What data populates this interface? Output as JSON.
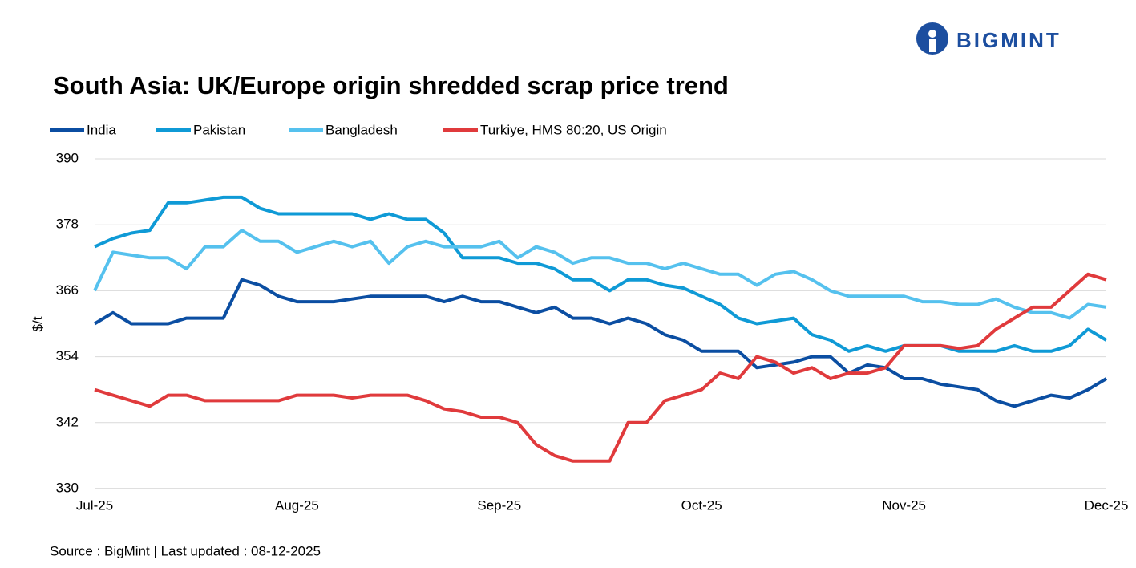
{
  "logo": "BIGMINT",
  "chart_data": {
    "type": "line",
    "title": "South Asia: UK/Europe origin shredded scrap price trend",
    "ylabel": "$/t",
    "source": "Source : BigMint | Last updated : 08-12-2025",
    "categories": [
      "Jul-25",
      null,
      null,
      null,
      null,
      null,
      null,
      null,
      null,
      null,
      null,
      "Aug-25",
      null,
      null,
      null,
      null,
      null,
      null,
      null,
      null,
      null,
      null,
      "Sep-25",
      null,
      null,
      null,
      null,
      null,
      null,
      null,
      null,
      null,
      null,
      "Oct-25",
      null,
      null,
      null,
      null,
      null,
      null,
      null,
      null,
      null,
      null,
      "Nov-25",
      null,
      null,
      null,
      null,
      null,
      null,
      null,
      null,
      null,
      null,
      "Dec-25"
    ],
    "ylim": [
      330,
      390
    ],
    "yticks": [
      330,
      342,
      354,
      366,
      378,
      390
    ],
    "grid": true,
    "series": [
      {
        "name": "India",
        "color": "#0b4ea2",
        "values": [
          360,
          362,
          360,
          360,
          360,
          361,
          361,
          361,
          368,
          367,
          365,
          364,
          364,
          364,
          364.5,
          365,
          365,
          365,
          365,
          364,
          365,
          364,
          364,
          363,
          362,
          363,
          361,
          361,
          360,
          361,
          360,
          358,
          357,
          355,
          355,
          355,
          352,
          352.5,
          353,
          354,
          354,
          351,
          352.5,
          352,
          350,
          350,
          349,
          348.5,
          348,
          346,
          345,
          346,
          347,
          346.5,
          348,
          350
        ]
      },
      {
        "name": "Pakistan",
        "color": "#0f9ad6",
        "values": [
          374,
          375.5,
          376.5,
          377,
          382,
          382,
          382.5,
          383,
          383,
          381,
          380,
          380,
          380,
          380,
          380,
          379,
          380,
          379,
          379,
          376.5,
          372,
          372,
          372,
          371,
          371,
          370,
          368,
          368,
          366,
          368,
          368,
          367,
          366.5,
          365,
          363.5,
          361,
          360,
          360.5,
          361,
          358,
          357,
          355,
          356,
          355,
          356,
          356,
          356,
          355,
          355,
          355,
          356,
          355,
          355,
          356,
          359,
          357
        ]
      },
      {
        "name": "Bangladesh",
        "color": "#55c1ee",
        "values": [
          366,
          373,
          372.5,
          372,
          372,
          370,
          374,
          374,
          377,
          375,
          375,
          373,
          374,
          375,
          374,
          375,
          371,
          374,
          375,
          374,
          374,
          374,
          375,
          372,
          374,
          373,
          371,
          372,
          372,
          371,
          371,
          370,
          371,
          370,
          369,
          369,
          367,
          369,
          369.5,
          368,
          366,
          365,
          365,
          365,
          365,
          364,
          364,
          363.5,
          363.5,
          364.5,
          363,
          362,
          362,
          361,
          363.5,
          363
        ]
      },
      {
        "name": "Turkiye, HMS 80:20, US Origin",
        "color": "#e03a3c",
        "values": [
          348,
          347,
          346,
          345,
          347,
          347,
          346,
          346,
          346,
          346,
          346,
          347,
          347,
          347,
          346.5,
          347,
          347,
          347,
          346,
          344.5,
          344,
          343,
          343,
          342,
          338,
          336,
          335,
          335,
          335,
          342,
          342,
          346,
          347,
          348,
          351,
          350,
          354,
          353,
          351,
          352,
          350,
          351,
          351,
          352,
          356,
          356,
          356,
          355.5,
          356,
          359,
          361,
          363,
          363,
          366,
          369,
          368
        ]
      }
    ]
  }
}
